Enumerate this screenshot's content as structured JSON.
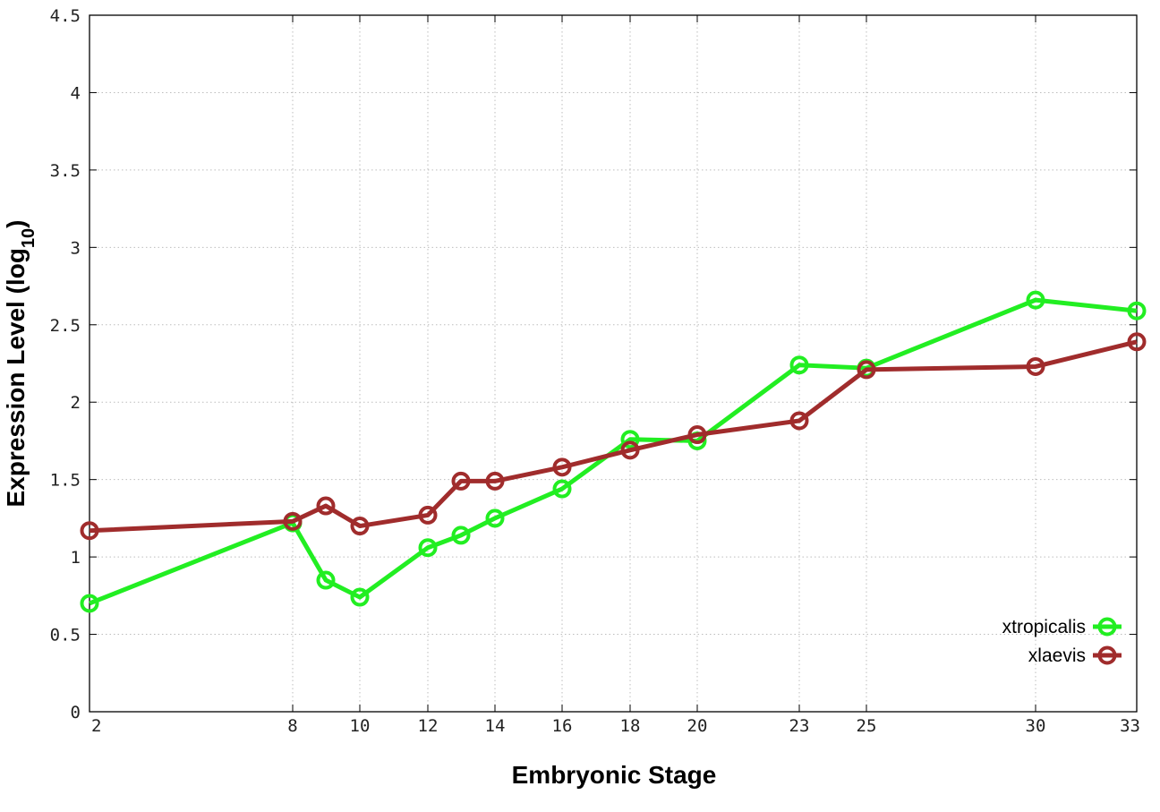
{
  "chart_data": {
    "type": "line",
    "xlabel": "Embryonic Stage",
    "ylabel": {
      "main": "Expression Level (log",
      "subscript": "10",
      "suffix": ")"
    },
    "x_ticks": [
      "2",
      "8",
      "10",
      "12",
      "14",
      "16",
      "18",
      "20",
      "23",
      "25",
      "30",
      "33"
    ],
    "y_ticks": [
      "0",
      "0.5",
      "1",
      "1.5",
      "2",
      "2.5",
      "3",
      "3.5",
      "4",
      "4.5"
    ],
    "ylim": [
      0,
      4.5
    ],
    "x_scale": "categorical, unevenly spaced",
    "grid": true,
    "legend_position": "bottom-right",
    "series": [
      {
        "name": "xtropicalis",
        "color": "#22ee22",
        "marker": "open-circle",
        "points": [
          {
            "x": "2",
            "y": 0.7
          },
          {
            "x": "8",
            "y": 1.22
          },
          {
            "x": "9",
            "y": 0.85
          },
          {
            "x": "10",
            "y": 0.74
          },
          {
            "x": "12",
            "y": 1.06
          },
          {
            "x": "13",
            "y": 1.14
          },
          {
            "x": "14",
            "y": 1.25
          },
          {
            "x": "16",
            "y": 1.44
          },
          {
            "x": "18",
            "y": 1.76
          },
          {
            "x": "20",
            "y": 1.75
          },
          {
            "x": "23",
            "y": 2.24
          },
          {
            "x": "25",
            "y": 2.22
          },
          {
            "x": "30",
            "y": 2.66
          },
          {
            "x": "33",
            "y": 2.59
          }
        ]
      },
      {
        "name": "xlaevis",
        "color": "#a02c2c",
        "marker": "open-circle",
        "points": [
          {
            "x": "2",
            "y": 1.17
          },
          {
            "x": "8",
            "y": 1.23
          },
          {
            "x": "9",
            "y": 1.33
          },
          {
            "x": "10",
            "y": 1.2
          },
          {
            "x": "12",
            "y": 1.27
          },
          {
            "x": "13",
            "y": 1.49
          },
          {
            "x": "14",
            "y": 1.49
          },
          {
            "x": "16",
            "y": 1.58
          },
          {
            "x": "18",
            "y": 1.69
          },
          {
            "x": "20",
            "y": 1.79
          },
          {
            "x": "23",
            "y": 1.88
          },
          {
            "x": "25",
            "y": 2.21
          },
          {
            "x": "30",
            "y": 2.23
          },
          {
            "x": "33",
            "y": 2.39
          }
        ]
      }
    ]
  }
}
